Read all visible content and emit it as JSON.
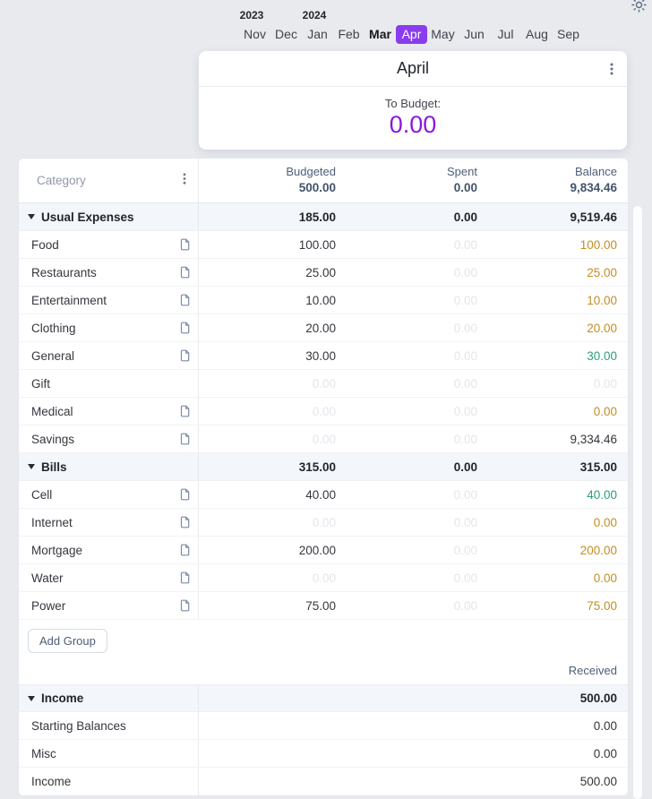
{
  "theme": {
    "background": "#e8eaee",
    "accent_purple": "#8a18dd",
    "selected_month_bg": "#8a3cee",
    "warning_amount": "#c28e25",
    "positive_amount": "#2e9c7a",
    "faint_amount": "#e3e6eb",
    "header_slate": "#4e5e78"
  },
  "top_bar": {
    "theme_toggle_icon": "sun-icon"
  },
  "month_picker": {
    "years": [
      "2023",
      "2024"
    ],
    "months": [
      {
        "label": "Nov"
      },
      {
        "label": "Dec"
      },
      {
        "label": "Jan"
      },
      {
        "label": "Feb"
      },
      {
        "label": "Mar",
        "current": true
      },
      {
        "label": "Apr",
        "selected": true
      },
      {
        "label": "May"
      },
      {
        "label": "Jun"
      },
      {
        "label": "Jul"
      },
      {
        "label": "Aug"
      },
      {
        "label": "Sep"
      }
    ]
  },
  "month_card": {
    "title": "April",
    "menu_icon": "kebab-menu-icon",
    "to_budget_label": "To Budget:",
    "to_budget_value": "0.00"
  },
  "budget_table": {
    "category_header": "Category",
    "columns": [
      {
        "label": "Budgeted",
        "total": "500.00"
      },
      {
        "label": "Spent",
        "total": "0.00"
      },
      {
        "label": "Balance",
        "total": "9,834.46"
      }
    ],
    "groups": [
      {
        "name": "Usual Expenses",
        "budgeted": "185.00",
        "spent": "0.00",
        "balance": "9,519.46",
        "rows": [
          {
            "name": "Food",
            "note": true,
            "budgeted": "100.00",
            "budgeted_faint": false,
            "spent": "0.00",
            "balance": "100.00",
            "balance_status": "warning"
          },
          {
            "name": "Restaurants",
            "note": true,
            "budgeted": "25.00",
            "budgeted_faint": false,
            "spent": "0.00",
            "balance": "25.00",
            "balance_status": "warning"
          },
          {
            "name": "Entertainment",
            "note": true,
            "budgeted": "10.00",
            "budgeted_faint": false,
            "spent": "0.00",
            "balance": "10.00",
            "balance_status": "warning"
          },
          {
            "name": "Clothing",
            "note": true,
            "budgeted": "20.00",
            "budgeted_faint": false,
            "spent": "0.00",
            "balance": "20.00",
            "balance_status": "warning"
          },
          {
            "name": "General",
            "note": true,
            "budgeted": "30.00",
            "budgeted_faint": false,
            "spent": "0.00",
            "balance": "30.00",
            "balance_status": "positive"
          },
          {
            "name": "Gift",
            "note": false,
            "budgeted": "0.00",
            "budgeted_faint": true,
            "spent": "0.00",
            "balance": "0.00",
            "balance_status": "faint"
          },
          {
            "name": "Medical",
            "note": true,
            "budgeted": "0.00",
            "budgeted_faint": true,
            "spent": "0.00",
            "balance": "0.00",
            "balance_status": "warning"
          },
          {
            "name": "Savings",
            "note": true,
            "budgeted": "0.00",
            "budgeted_faint": true,
            "spent": "0.00",
            "balance": "9,334.46",
            "balance_status": "neutral"
          }
        ]
      },
      {
        "name": "Bills",
        "budgeted": "315.00",
        "spent": "0.00",
        "balance": "315.00",
        "rows": [
          {
            "name": "Cell",
            "note": true,
            "budgeted": "40.00",
            "budgeted_faint": false,
            "spent": "0.00",
            "balance": "40.00",
            "balance_status": "positive"
          },
          {
            "name": "Internet",
            "note": true,
            "budgeted": "0.00",
            "budgeted_faint": true,
            "spent": "0.00",
            "balance": "0.00",
            "balance_status": "warning"
          },
          {
            "name": "Mortgage",
            "note": true,
            "budgeted": "200.00",
            "budgeted_faint": false,
            "spent": "0.00",
            "balance": "200.00",
            "balance_status": "warning"
          },
          {
            "name": "Water",
            "note": true,
            "budgeted": "0.00",
            "budgeted_faint": true,
            "spent": "0.00",
            "balance": "0.00",
            "balance_status": "warning"
          },
          {
            "name": "Power",
            "note": true,
            "budgeted": "75.00",
            "budgeted_faint": false,
            "spent": "0.00",
            "balance": "75.00",
            "balance_status": "warning"
          }
        ]
      }
    ],
    "add_group_label": "Add Group",
    "received_header": "Received",
    "income_group": {
      "name": "Income",
      "received": "500.00",
      "rows": [
        {
          "name": "Starting Balances",
          "received": "0.00"
        },
        {
          "name": "Misc",
          "received": "0.00"
        },
        {
          "name": "Income",
          "received": "500.00"
        }
      ]
    }
  }
}
